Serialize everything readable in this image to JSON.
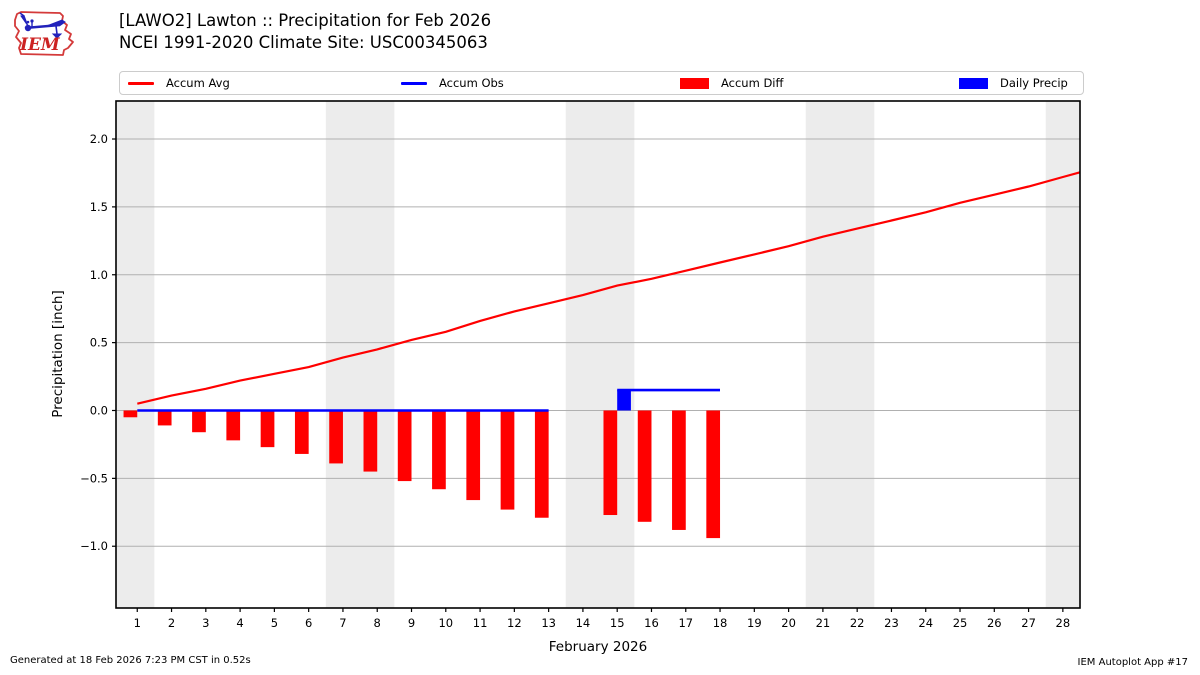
{
  "header": {
    "title_line1": "[LAWO2] Lawton :: Precipitation for Feb 2026",
    "title_line2": "NCEI 1991-2020 Climate Site: USC00345063"
  },
  "logo": {
    "text": "IEM"
  },
  "legend": {
    "items": [
      {
        "label": "Accum Avg",
        "swatch": "line",
        "color": "#ff0000"
      },
      {
        "label": "Accum Obs",
        "swatch": "line",
        "color": "#0000ff"
      },
      {
        "label": "Accum Diff",
        "swatch": "rect",
        "color": "#ff0000"
      },
      {
        "label": "Daily Precip",
        "swatch": "rect",
        "color": "#0000ff"
      }
    ]
  },
  "footer": {
    "left": "Generated at 18 Feb 2026 7:23 PM CST in 0.52s",
    "right": "IEM Autoplot App #17"
  },
  "chart_data": {
    "type": "bar",
    "xlabel": "February 2026",
    "ylabel": "Precipitation [inch]",
    "days": [
      1,
      2,
      3,
      4,
      5,
      6,
      7,
      8,
      9,
      10,
      11,
      12,
      13,
      14,
      15,
      16,
      17,
      18,
      19,
      20,
      21,
      22,
      23,
      24,
      25,
      26,
      27,
      28
    ],
    "xlim": [
      0.38,
      28.5
    ],
    "ylim": [
      -1.455,
      2.28
    ],
    "y_ticks": [
      2.0,
      1.5,
      1.0,
      0.5,
      0.0,
      -0.5,
      -1.0
    ],
    "grid": true,
    "weekend_bands": [
      [
        0.38,
        1.5
      ],
      [
        6.5,
        8.5
      ],
      [
        13.5,
        15.5
      ],
      [
        20.5,
        22.5
      ],
      [
        27.5,
        28.5
      ]
    ],
    "colors": {
      "band": "#ececec",
      "grid": "#b0b0b0",
      "frame": "#000000",
      "accum_avg": "#ff0000",
      "accum_obs": "#0000ff",
      "accum_diff": "#ff0000",
      "daily_precip": "#0000ff"
    },
    "series": [
      {
        "name": "Accum Avg",
        "type": "line",
        "color": "#ff0000",
        "values": [
          0.05,
          0.11,
          0.16,
          0.22,
          0.27,
          0.32,
          0.39,
          0.45,
          0.52,
          0.58,
          0.66,
          0.73,
          0.79,
          0.85,
          0.92,
          0.97,
          1.03,
          1.09,
          1.15,
          1.21,
          1.28,
          1.34,
          1.4,
          1.46,
          1.53,
          1.59,
          1.65,
          1.72
        ]
      },
      {
        "name": "Accum Obs",
        "type": "line",
        "color": "#0000ff",
        "values": [
          0,
          0,
          0,
          0,
          0,
          0,
          0,
          0,
          0,
          0,
          0,
          0,
          0,
          null,
          0.15,
          0.15,
          0.15,
          0.15,
          null,
          null,
          null,
          null,
          null,
          null,
          null,
          null,
          null,
          null
        ]
      },
      {
        "name": "Accum Diff",
        "type": "bar",
        "color": "#ff0000",
        "bar_offset": [
          -0.4,
          0
        ],
        "values": [
          -0.05,
          -0.11,
          -0.16,
          -0.22,
          -0.27,
          -0.32,
          -0.39,
          -0.45,
          -0.52,
          -0.58,
          -0.66,
          -0.73,
          -0.79,
          null,
          -0.77,
          -0.82,
          -0.88,
          -0.94,
          null,
          null,
          null,
          null,
          null,
          null,
          null,
          null,
          null,
          null
        ]
      },
      {
        "name": "Daily Precip",
        "type": "bar",
        "color": "#0000ff",
        "bar_offset": [
          0,
          0.4
        ],
        "values": [
          0,
          0,
          0,
          0,
          0,
          0,
          0,
          0,
          0,
          0,
          0,
          0,
          0,
          null,
          0.15,
          0,
          0,
          0,
          null,
          null,
          null,
          null,
          null,
          null,
          null,
          null,
          null,
          null
        ]
      }
    ]
  }
}
